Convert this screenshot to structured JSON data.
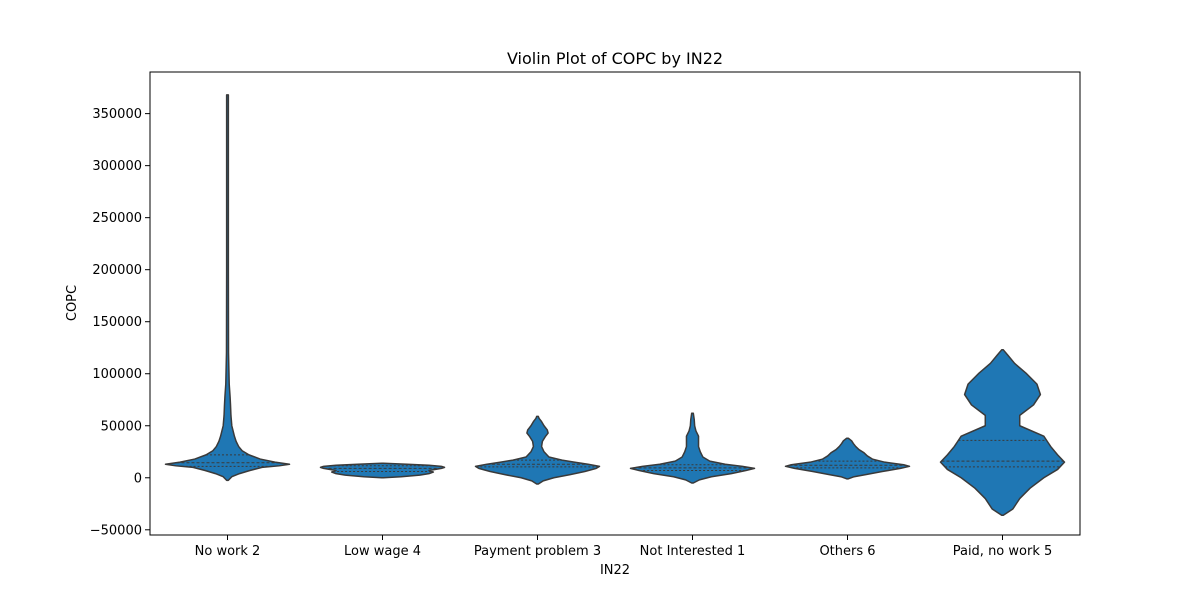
{
  "chart_data": {
    "type": "violin",
    "title": "Violin Plot of COPC by IN22",
    "xlabel": "IN22",
    "ylabel": "COPC",
    "ylim": [
      -55000,
      390000
    ],
    "yticks": [
      -50000,
      0,
      50000,
      100000,
      150000,
      200000,
      250000,
      300000,
      350000
    ],
    "ytick_labels": [
      "−50000",
      "0",
      "50000",
      "100000",
      "150000",
      "200000",
      "250000",
      "300000",
      "350000"
    ],
    "grid": false,
    "color": "#1f77b4",
    "edge_color": "#3a3a3a",
    "categories": [
      "No work 2",
      "Low wage 4",
      "Payment problem 3",
      "Not Interested 1",
      "Others 6",
      "Paid, no work 5"
    ],
    "violins": [
      {
        "category": "No work 2",
        "min": -2500,
        "max": 368000,
        "quartiles": [
          11000,
          14500,
          22000
        ],
        "profile": [
          [
            -2500,
            0
          ],
          [
            1000,
            0.05
          ],
          [
            4000,
            0.14
          ],
          [
            7000,
            0.26
          ],
          [
            10000,
            0.4
          ],
          [
            11500,
            0.6
          ],
          [
            13000,
            0.72
          ],
          [
            15000,
            0.55
          ],
          [
            18000,
            0.38
          ],
          [
            22000,
            0.25
          ],
          [
            26000,
            0.17
          ],
          [
            30000,
            0.13
          ],
          [
            35000,
            0.1
          ],
          [
            40000,
            0.08
          ],
          [
            45000,
            0.065
          ],
          [
            50000,
            0.05
          ],
          [
            60000,
            0.04
          ],
          [
            70000,
            0.035
          ],
          [
            78000,
            0.03
          ],
          [
            90000,
            0.02
          ],
          [
            120000,
            0.012
          ],
          [
            200000,
            0.01
          ],
          [
            368000,
            0.01
          ]
        ]
      },
      {
        "category": "Low wage 4",
        "min": 0,
        "max": 14000,
        "quartiles": [
          6000,
          9000,
          11500
        ],
        "profile": [
          [
            0,
            0
          ],
          [
            1000,
            0.3
          ],
          [
            2500,
            0.6
          ],
          [
            4000,
            0.75
          ],
          [
            5500,
            0.82
          ],
          [
            7000,
            0.75
          ],
          [
            9000,
            0.95
          ],
          [
            10000,
            1.0
          ],
          [
            11000,
            0.95
          ],
          [
            12000,
            0.75
          ],
          [
            13000,
            0.4
          ],
          [
            14000,
            0
          ]
        ]
      },
      {
        "category": "Payment problem 3",
        "min": -6000,
        "max": 59000,
        "quartiles": [
          10500,
          13000,
          17000
        ],
        "profile": [
          [
            -6000,
            0
          ],
          [
            -3000,
            0.07
          ],
          [
            0,
            0.2
          ],
          [
            3000,
            0.4
          ],
          [
            6000,
            0.58
          ],
          [
            9000,
            0.72
          ],
          [
            11000,
            0.76
          ],
          [
            13000,
            0.62
          ],
          [
            15000,
            0.45
          ],
          [
            17000,
            0.3
          ],
          [
            20000,
            0.14
          ],
          [
            25000,
            0.08
          ],
          [
            30000,
            0.05
          ],
          [
            35000,
            0.06
          ],
          [
            40000,
            0.1
          ],
          [
            43000,
            0.13
          ],
          [
            46000,
            0.12
          ],
          [
            50000,
            0.08
          ],
          [
            54000,
            0.05
          ],
          [
            57000,
            0.02
          ],
          [
            59000,
            0
          ]
        ]
      },
      {
        "category": "Not Interested 1",
        "min": -5000,
        "max": 62000,
        "quartiles": [
          7000,
          9500,
          12500
        ],
        "profile": [
          [
            -5000,
            0
          ],
          [
            -2000,
            0.08
          ],
          [
            1000,
            0.22
          ],
          [
            4000,
            0.45
          ],
          [
            7000,
            0.62
          ],
          [
            9000,
            0.72
          ],
          [
            11000,
            0.58
          ],
          [
            13000,
            0.38
          ],
          [
            16000,
            0.2
          ],
          [
            20000,
            0.12
          ],
          [
            25000,
            0.09
          ],
          [
            30000,
            0.07
          ],
          [
            35000,
            0.07
          ],
          [
            40000,
            0.07
          ],
          [
            45000,
            0.04
          ],
          [
            50000,
            0.025
          ],
          [
            56000,
            0.02
          ],
          [
            62000,
            0
          ]
        ]
      },
      {
        "category": "Others 6",
        "min": -1000,
        "max": 38000,
        "quartiles": [
          9500,
          12000,
          16000
        ],
        "profile": [
          [
            -1000,
            0
          ],
          [
            1000,
            0.08
          ],
          [
            3000,
            0.22
          ],
          [
            6000,
            0.42
          ],
          [
            9000,
            0.64
          ],
          [
            11000,
            0.75
          ],
          [
            12500,
            0.68
          ],
          [
            15000,
            0.45
          ],
          [
            18000,
            0.3
          ],
          [
            21000,
            0.24
          ],
          [
            24000,
            0.2
          ],
          [
            27000,
            0.14
          ],
          [
            30000,
            0.1
          ],
          [
            33000,
            0.07
          ],
          [
            35500,
            0.05
          ],
          [
            38000,
            0
          ]
        ]
      },
      {
        "category": "Paid, no work 5",
        "min": -36000,
        "max": 123000,
        "quartiles": [
          10500,
          16000,
          36000
        ],
        "profile": [
          [
            -36000,
            0
          ],
          [
            -30000,
            0.03
          ],
          [
            -20000,
            0.05
          ],
          [
            -10000,
            0.08
          ],
          [
            0,
            0.12
          ],
          [
            8000,
            0.16
          ],
          [
            15000,
            0.18
          ],
          [
            22000,
            0.16
          ],
          [
            30000,
            0.14
          ],
          [
            35000,
            0.13
          ],
          [
            40000,
            0.12
          ],
          [
            50000,
            0.05
          ],
          [
            60000,
            0.05
          ],
          [
            70000,
            0.09
          ],
          [
            80000,
            0.11
          ],
          [
            90000,
            0.1
          ],
          [
            100000,
            0.07
          ],
          [
            110000,
            0.035
          ],
          [
            118000,
            0.015
          ],
          [
            123000,
            0
          ]
        ]
      }
    ]
  }
}
